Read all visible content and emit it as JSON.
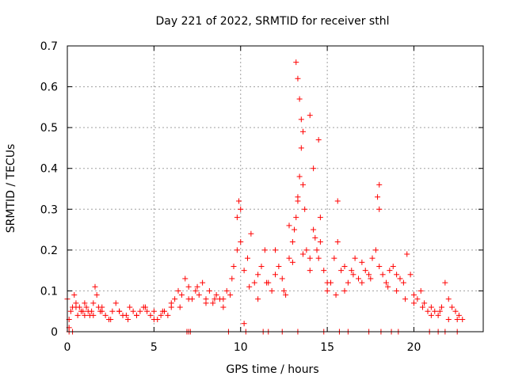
{
  "chart_data": {
    "type": "scatter",
    "title": "Day 221 of 2022, SRMTID for receiver sthl",
    "xlabel": "GPS time / hours",
    "ylabel": "SRMTID / TECUs",
    "xlim": [
      0,
      24
    ],
    "ylim": [
      0,
      0.7
    ],
    "xticks": [
      "0",
      "5",
      "10",
      "15",
      "20"
    ],
    "yticks": [
      "0",
      "0.1",
      "0.2",
      "0.3",
      "0.4",
      "0.5",
      "0.6",
      "0.7"
    ],
    "grid": true,
    "marker": "+",
    "color": "#ff0000",
    "series": [
      {
        "name": "SRMTID",
        "x": [
          0.0,
          0.1,
          0.2,
          0.3,
          0.4,
          0.5,
          0.6,
          0.7,
          0.8,
          0.9,
          1.0,
          1.1,
          1.2,
          1.3,
          1.4,
          1.5,
          1.6,
          1.7,
          1.8,
          1.9,
          2.0,
          2.2,
          2.4,
          2.6,
          2.8,
          3.0,
          3.2,
          3.4,
          3.6,
          3.8,
          4.0,
          4.2,
          4.4,
          4.6,
          4.8,
          5.0,
          5.2,
          5.4,
          5.6,
          5.8,
          6.0,
          6.2,
          6.4,
          6.6,
          6.8,
          7.0,
          7.2,
          7.4,
          7.6,
          7.8,
          8.0,
          8.2,
          8.4,
          8.6,
          8.8,
          9.0,
          9.2,
          9.4,
          9.6,
          9.8,
          10.0,
          10.2,
          10.4,
          10.6,
          10.8,
          11.0,
          11.2,
          11.4,
          11.6,
          11.8,
          12.0,
          12.2,
          12.4,
          12.6,
          12.8,
          13.0,
          13.1,
          13.2,
          13.3,
          13.4,
          13.5,
          13.6,
          13.7,
          13.8,
          14.0,
          14.2,
          14.4,
          14.5,
          14.6,
          14.8,
          15.0,
          15.2,
          15.4,
          15.6,
          15.8,
          16.0,
          16.2,
          16.4,
          16.6,
          16.8,
          17.0,
          17.2,
          17.4,
          17.6,
          17.8,
          18.0,
          18.2,
          18.4,
          18.6,
          18.8,
          19.0,
          19.2,
          19.4,
          19.6,
          19.8,
          20.0,
          20.2,
          20.4,
          20.6,
          20.8,
          21.0,
          21.2,
          21.4,
          21.6,
          21.8,
          22.0,
          22.2,
          22.4,
          22.6,
          22.8,
          0.1,
          0.5,
          1.0,
          1.5,
          2.0,
          2.5,
          3.0,
          3.5,
          4.0,
          4.5,
          5.0,
          5.5,
          6.0,
          6.5,
          7.0,
          7.5,
          8.0,
          8.5,
          9.0,
          9.5,
          9.8,
          10.0,
          10.5,
          11.0,
          11.5,
          12.0,
          12.5,
          13.0,
          13.3,
          13.6,
          14.0,
          14.3,
          14.6,
          15.0,
          15.5,
          16.0,
          16.5,
          17.0,
          17.5,
          18.0,
          18.5,
          19.0,
          19.5,
          20.0,
          20.5,
          21.0,
          21.5,
          22.0,
          22.5,
          13.2,
          13.3,
          13.4,
          13.5,
          13.6,
          14.0,
          14.2,
          14.5,
          9.9,
          10.2,
          15.6,
          17.9,
          18.0,
          12.8
        ],
        "y": [
          0.08,
          0.03,
          0.05,
          0.06,
          0.09,
          0.07,
          0.04,
          0.06,
          0.05,
          0.05,
          0.04,
          0.06,
          0.05,
          0.04,
          0.05,
          0.07,
          0.11,
          0.09,
          0.06,
          0.05,
          0.06,
          0.04,
          0.03,
          0.05,
          0.07,
          0.05,
          0.04,
          0.04,
          0.06,
          0.05,
          0.04,
          0.05,
          0.06,
          0.05,
          0.04,
          0.05,
          0.03,
          0.04,
          0.05,
          0.04,
          0.06,
          0.08,
          0.1,
          0.09,
          0.13,
          0.11,
          0.08,
          0.1,
          0.09,
          0.12,
          0.08,
          0.1,
          0.07,
          0.09,
          0.08,
          0.08,
          0.1,
          0.09,
          0.16,
          0.2,
          0.22,
          0.15,
          0.18,
          0.24,
          0.12,
          0.14,
          0.16,
          0.2,
          0.12,
          0.1,
          0.14,
          0.16,
          0.13,
          0.09,
          0.18,
          0.22,
          0.25,
          0.28,
          0.33,
          0.38,
          0.45,
          0.36,
          0.3,
          0.2,
          0.18,
          0.25,
          0.2,
          0.18,
          0.22,
          0.15,
          0.1,
          0.12,
          0.18,
          0.22,
          0.15,
          0.1,
          0.12,
          0.15,
          0.18,
          0.13,
          0.17,
          0.15,
          0.14,
          0.18,
          0.2,
          0.16,
          0.14,
          0.12,
          0.15,
          0.16,
          0.1,
          0.13,
          0.12,
          0.19,
          0.14,
          0.09,
          0.08,
          0.1,
          0.07,
          0.05,
          0.06,
          0.05,
          0.04,
          0.06,
          0.12,
          0.08,
          0.06,
          0.05,
          0.04,
          0.03,
          0.01,
          0.06,
          0.07,
          0.04,
          0.05,
          0.03,
          0.05,
          0.03,
          0.04,
          0.06,
          0.03,
          0.05,
          0.07,
          0.06,
          0.08,
          0.11,
          0.07,
          0.08,
          0.06,
          0.13,
          0.28,
          0.3,
          0.11,
          0.08,
          0.12,
          0.2,
          0.1,
          0.17,
          0.32,
          0.19,
          0.15,
          0.23,
          0.28,
          0.12,
          0.09,
          0.16,
          0.14,
          0.12,
          0.13,
          0.3,
          0.11,
          0.14,
          0.08,
          0.07,
          0.06,
          0.04,
          0.05,
          0.03,
          0.03,
          0.66,
          0.62,
          0.57,
          0.52,
          0.49,
          0.53,
          0.4,
          0.47,
          0.32,
          0.02,
          0.32,
          0.33,
          0.36,
          0.26
        ]
      }
    ],
    "zero_markers_x": [
      0.1,
      0.3,
      6.9,
      7.0,
      7.1,
      9.3,
      10.3,
      11.3,
      11.6,
      12.4,
      13.3,
      14.8,
      15.7,
      16.2,
      17.4,
      18.1,
      18.7,
      19.1,
      20.9,
      21.4,
      21.8,
      22.5
    ]
  }
}
